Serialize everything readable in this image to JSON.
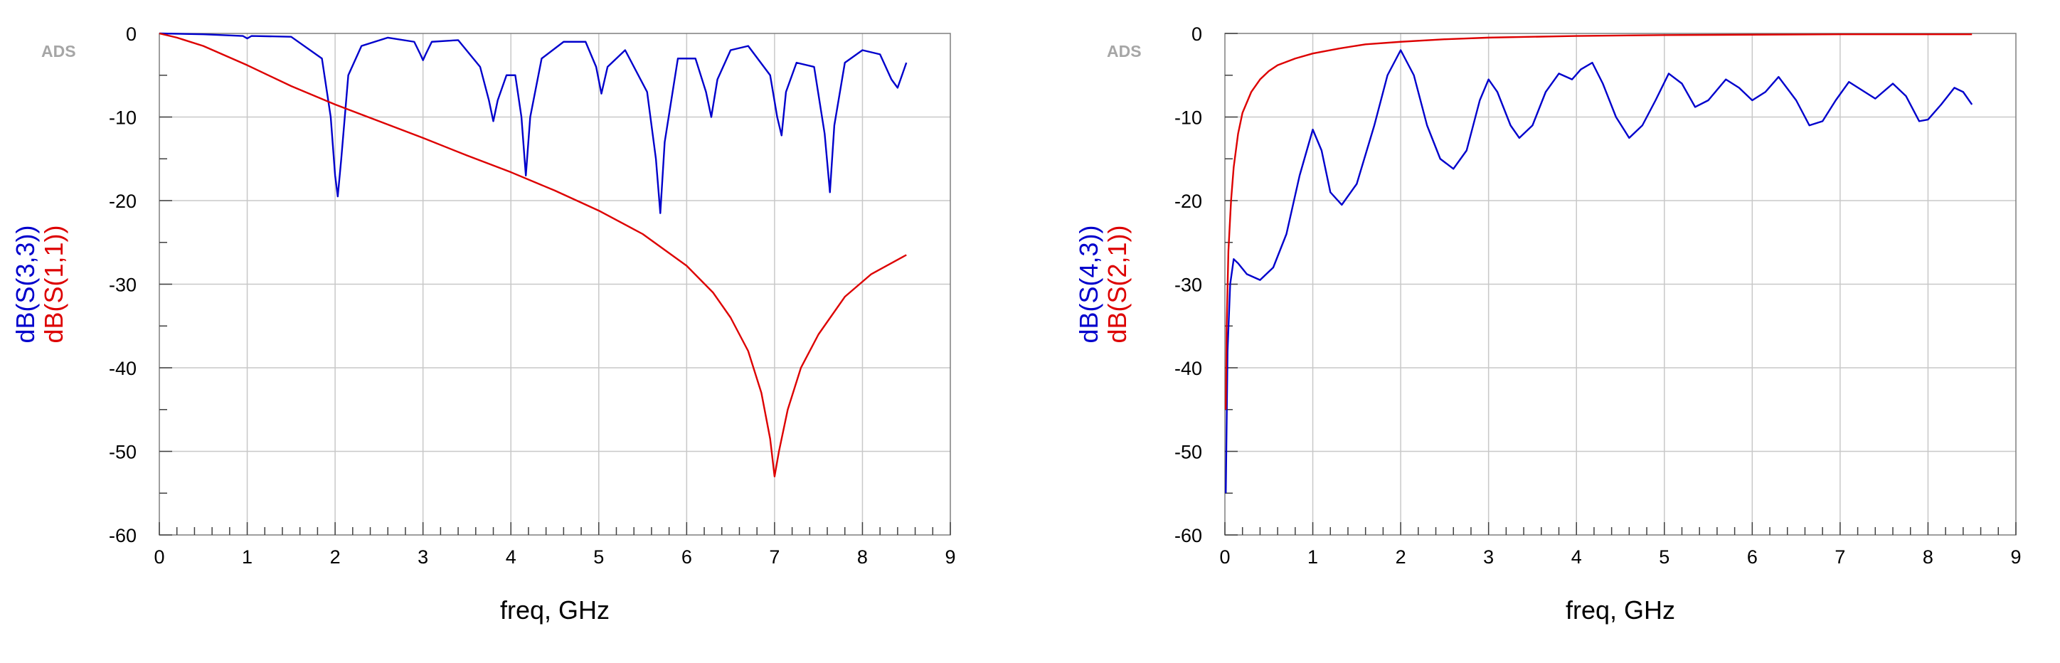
{
  "chart_data": [
    {
      "type": "line",
      "watermark": "ADS",
      "xlabel": "freq, GHz",
      "xlim": [
        0,
        9
      ],
      "ylim": [
        -60,
        0
      ],
      "xticks": [
        0,
        1,
        2,
        3,
        4,
        5,
        6,
        7,
        8,
        9
      ],
      "yticks": [
        0,
        -10,
        -20,
        -30,
        -40,
        -50,
        -60
      ],
      "grid": true,
      "ylabel_entries": [
        {
          "text": "dB(S(3,3))",
          "color": "#0000cc"
        },
        {
          "text": "dB(S(1,1))",
          "color": "#dd0000"
        }
      ],
      "series": [
        {
          "color": "#0000cc",
          "x": [
            0,
            0.5,
            0.95,
            1.0,
            1.05,
            1.5,
            1.85,
            1.95,
            2.0,
            2.03,
            2.07,
            2.15,
            2.3,
            2.6,
            2.9,
            2.97,
            3.0,
            3.03,
            3.1,
            3.4,
            3.65,
            3.75,
            3.8,
            3.85,
            3.95,
            4.05,
            4.12,
            4.17,
            4.22,
            4.35,
            4.6,
            4.85,
            4.97,
            5.03,
            5.1,
            5.3,
            5.55,
            5.65,
            5.7,
            5.75,
            5.9,
            6.1,
            6.22,
            6.28,
            6.35,
            6.5,
            6.7,
            6.95,
            7.03,
            7.08,
            7.13,
            7.25,
            7.45,
            7.57,
            7.63,
            7.68,
            7.8,
            8.0,
            8.2,
            8.33,
            8.4,
            8.5
          ],
          "y": [
            0,
            -0.1,
            -0.3,
            -0.6,
            -0.3,
            -0.4,
            -3,
            -10,
            -17,
            -19.5,
            -15,
            -5,
            -1.5,
            -0.5,
            -1,
            -2.5,
            -3.2,
            -2.5,
            -1,
            -0.8,
            -4,
            -8,
            -10.5,
            -8,
            -5,
            -5,
            -10,
            -17,
            -10,
            -3,
            -1,
            -1,
            -4,
            -7.2,
            -4,
            -2,
            -7,
            -15,
            -21.5,
            -13,
            -3,
            -3,
            -7,
            -10,
            -5.5,
            -2,
            -1.5,
            -5,
            -10,
            -12.2,
            -7,
            -3.5,
            -4,
            -12,
            -19,
            -11,
            -3.5,
            -2,
            -2.5,
            -5.5,
            -6.5,
            -3.5
          ]
        },
        {
          "color": "#dd0000",
          "x": [
            0,
            0.2,
            0.5,
            1.0,
            1.5,
            2.0,
            2.5,
            3.0,
            3.5,
            4.0,
            4.5,
            5.0,
            5.5,
            6.0,
            6.3,
            6.5,
            6.7,
            6.85,
            6.95,
            7.0,
            7.05,
            7.15,
            7.3,
            7.5,
            7.8,
            8.1,
            8.5
          ],
          "y": [
            0,
            -0.5,
            -1.5,
            -3.8,
            -6.3,
            -8.5,
            -10.5,
            -12.5,
            -14.6,
            -16.6,
            -18.8,
            -21.2,
            -24,
            -27.8,
            -31,
            -34,
            -38,
            -43,
            -48.5,
            -53,
            -50,
            -45,
            -40,
            -36,
            -31.5,
            -28.8,
            -26.5
          ]
        }
      ]
    },
    {
      "type": "line",
      "watermark": "ADS",
      "xlabel": "freq, GHz",
      "xlim": [
        0,
        9
      ],
      "ylim": [
        -60,
        0
      ],
      "xticks": [
        0,
        1,
        2,
        3,
        4,
        5,
        6,
        7,
        8,
        9
      ],
      "yticks": [
        0,
        -10,
        -20,
        -30,
        -40,
        -50,
        -60
      ],
      "grid": true,
      "ylabel_entries": [
        {
          "text": "dB(S(4,3))",
          "color": "#0000cc"
        },
        {
          "text": "dB(S(2,1))",
          "color": "#dd0000"
        }
      ],
      "series": [
        {
          "color": "#0000cc",
          "x": [
            0.01,
            0.03,
            0.06,
            0.1,
            0.15,
            0.25,
            0.4,
            0.55,
            0.7,
            0.85,
            1.0,
            1.1,
            1.2,
            1.33,
            1.5,
            1.7,
            1.85,
            2.0,
            2.15,
            2.3,
            2.45,
            2.6,
            2.75,
            2.9,
            3.0,
            3.1,
            3.25,
            3.35,
            3.5,
            3.65,
            3.8,
            3.95,
            4.05,
            4.18,
            4.3,
            4.45,
            4.6,
            4.75,
            4.9,
            5.05,
            5.2,
            5.35,
            5.5,
            5.7,
            5.85,
            6.0,
            6.15,
            6.3,
            6.5,
            6.65,
            6.8,
            6.95,
            7.1,
            7.25,
            7.4,
            7.6,
            7.75,
            7.9,
            8.0,
            8.15,
            8.3,
            8.4,
            8.5
          ],
          "y": [
            -55,
            -38,
            -30,
            -27,
            -27.5,
            -28.8,
            -29.5,
            -28,
            -24,
            -17,
            -11.5,
            -14,
            -19,
            -20.5,
            -18,
            -11,
            -5,
            -2,
            -5,
            -11,
            -15,
            -16.2,
            -14,
            -8,
            -5.5,
            -7,
            -11,
            -12.5,
            -11,
            -7,
            -4.8,
            -5.5,
            -4.3,
            -3.5,
            -6,
            -10,
            -12.5,
            -11,
            -8,
            -4.8,
            -6,
            -8.8,
            -8,
            -5.5,
            -6.5,
            -8,
            -7,
            -5.2,
            -8,
            -11,
            -10.5,
            -8,
            -5.8,
            -6.8,
            -7.8,
            -6,
            -7.5,
            -10.5,
            -10.3,
            -8.5,
            -6.5,
            -7,
            -8.5
          ]
        },
        {
          "color": "#dd0000",
          "x": [
            0.01,
            0.02,
            0.04,
            0.07,
            0.1,
            0.15,
            0.2,
            0.3,
            0.4,
            0.5,
            0.6,
            0.8,
            1.0,
            1.3,
            1.6,
            2.0,
            2.5,
            3.0,
            4.0,
            5.0,
            6.0,
            7.0,
            8.0,
            8.5
          ],
          "y": [
            -45,
            -35,
            -26,
            -20,
            -16,
            -12,
            -9.5,
            -7,
            -5.5,
            -4.5,
            -3.8,
            -3,
            -2.4,
            -1.8,
            -1.3,
            -1,
            -0.7,
            -0.5,
            -0.3,
            -0.2,
            -0.15,
            -0.1,
            -0.1,
            -0.1
          ]
        }
      ]
    }
  ]
}
